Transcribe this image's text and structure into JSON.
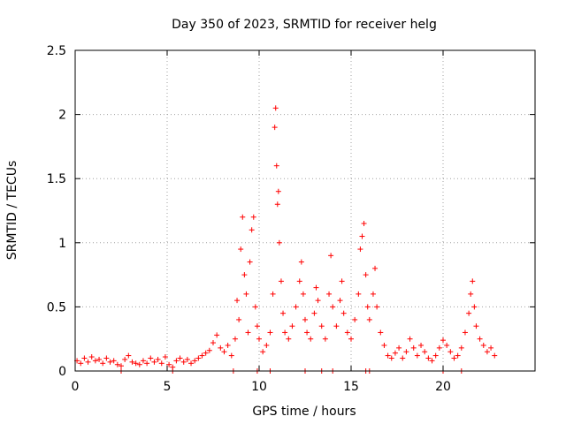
{
  "chart_data": {
    "type": "scatter",
    "title": "Day 350 of 2023, SRMTID for receiver helg",
    "xlabel": "GPS time / hours",
    "ylabel": "SRMTID / TECUs",
    "xlim": [
      0,
      25
    ],
    "ylim": [
      0,
      2.5
    ],
    "xticks": [
      0,
      5,
      10,
      15,
      20
    ],
    "xtick_labels": [
      "0",
      "5",
      "10",
      "15",
      "20"
    ],
    "yticks": [
      0,
      0.5,
      1,
      1.5,
      2,
      2.5
    ],
    "ytick_labels": [
      "0",
      "0.5",
      "1",
      "1.5",
      "2",
      "2.5"
    ],
    "grid": true,
    "marker": "+",
    "color": "#ff0000",
    "series": [
      {
        "name": "SRMTID",
        "points": [
          [
            0.1,
            0.08
          ],
          [
            0.3,
            0.06
          ],
          [
            0.5,
            0.1
          ],
          [
            0.7,
            0.07
          ],
          [
            0.9,
            0.11
          ],
          [
            1.1,
            0.08
          ],
          [
            1.3,
            0.09
          ],
          [
            1.5,
            0.06
          ],
          [
            1.7,
            0.1
          ],
          [
            1.9,
            0.07
          ],
          [
            2.1,
            0.08
          ],
          [
            2.3,
            0.05
          ],
          [
            2.5,
            0.04
          ],
          [
            2.7,
            0.09
          ],
          [
            2.9,
            0.12
          ],
          [
            3.1,
            0.07
          ],
          [
            3.3,
            0.06
          ],
          [
            3.5,
            0.05
          ],
          [
            3.7,
            0.08
          ],
          [
            3.9,
            0.06
          ],
          [
            4.1,
            0.1
          ],
          [
            4.3,
            0.07
          ],
          [
            4.5,
            0.09
          ],
          [
            4.7,
            0.06
          ],
          [
            4.9,
            0.11
          ],
          [
            5.1,
            0.05
          ],
          [
            5.3,
            0.03
          ],
          [
            5.5,
            0.08
          ],
          [
            5.7,
            0.1
          ],
          [
            5.9,
            0.07
          ],
          [
            6.1,
            0.09
          ],
          [
            6.3,
            0.06
          ],
          [
            6.5,
            0.08
          ],
          [
            6.7,
            0.1
          ],
          [
            6.9,
            0.12
          ],
          [
            7.1,
            0.14
          ],
          [
            7.3,
            0.16
          ],
          [
            7.5,
            0.22
          ],
          [
            7.7,
            0.28
          ],
          [
            7.9,
            0.18
          ],
          [
            8.1,
            0.15
          ],
          [
            8.3,
            0.2
          ],
          [
            8.5,
            0.12
          ],
          [
            8.7,
            0.25
          ],
          [
            8.8,
            0.55
          ],
          [
            8.9,
            0.4
          ],
          [
            9.0,
            0.95
          ],
          [
            9.1,
            1.2
          ],
          [
            9.2,
            0.75
          ],
          [
            9.3,
            0.6
          ],
          [
            9.4,
            0.3
          ],
          [
            9.5,
            0.85
          ],
          [
            9.6,
            1.1
          ],
          [
            9.7,
            1.2
          ],
          [
            9.8,
            0.5
          ],
          [
            9.9,
            0.35
          ],
          [
            10.0,
            0.25
          ],
          [
            10.2,
            0.15
          ],
          [
            10.4,
            0.2
          ],
          [
            10.6,
            0.3
          ],
          [
            10.75,
            0.6
          ],
          [
            10.85,
            1.9
          ],
          [
            10.9,
            2.05
          ],
          [
            10.95,
            1.6
          ],
          [
            11.0,
            1.3
          ],
          [
            11.05,
            1.4
          ],
          [
            11.1,
            1.0
          ],
          [
            11.2,
            0.7
          ],
          [
            11.3,
            0.45
          ],
          [
            11.4,
            0.3
          ],
          [
            11.6,
            0.25
          ],
          [
            11.8,
            0.35
          ],
          [
            12.0,
            0.5
          ],
          [
            12.2,
            0.7
          ],
          [
            12.3,
            0.85
          ],
          [
            12.4,
            0.6
          ],
          [
            12.5,
            0.4
          ],
          [
            12.6,
            0.3
          ],
          [
            12.8,
            0.25
          ],
          [
            13.0,
            0.45
          ],
          [
            13.1,
            0.65
          ],
          [
            13.2,
            0.55
          ],
          [
            13.4,
            0.35
          ],
          [
            13.6,
            0.25
          ],
          [
            13.8,
            0.6
          ],
          [
            13.9,
            0.9
          ],
          [
            14.0,
            0.5
          ],
          [
            14.2,
            0.35
          ],
          [
            14.4,
            0.55
          ],
          [
            14.5,
            0.7
          ],
          [
            14.6,
            0.45
          ],
          [
            14.8,
            0.3
          ],
          [
            15.0,
            0.25
          ],
          [
            15.2,
            0.4
          ],
          [
            15.4,
            0.6
          ],
          [
            15.5,
            0.95
          ],
          [
            15.6,
            1.05
          ],
          [
            15.7,
            1.15
          ],
          [
            15.8,
            0.75
          ],
          [
            15.9,
            0.5
          ],
          [
            16.0,
            0.4
          ],
          [
            16.2,
            0.6
          ],
          [
            16.3,
            0.8
          ],
          [
            16.4,
            0.5
          ],
          [
            16.6,
            0.3
          ],
          [
            16.8,
            0.2
          ],
          [
            17.0,
            0.12
          ],
          [
            17.2,
            0.1
          ],
          [
            17.4,
            0.14
          ],
          [
            17.6,
            0.18
          ],
          [
            17.8,
            0.1
          ],
          [
            18.0,
            0.15
          ],
          [
            18.2,
            0.25
          ],
          [
            18.4,
            0.18
          ],
          [
            18.6,
            0.12
          ],
          [
            18.8,
            0.2
          ],
          [
            19.0,
            0.15
          ],
          [
            19.2,
            0.1
          ],
          [
            19.4,
            0.08
          ],
          [
            19.6,
            0.12
          ],
          [
            19.8,
            0.18
          ],
          [
            20.0,
            0.24
          ],
          [
            20.2,
            0.2
          ],
          [
            20.4,
            0.15
          ],
          [
            20.6,
            0.1
          ],
          [
            20.8,
            0.12
          ],
          [
            21.0,
            0.18
          ],
          [
            21.2,
            0.3
          ],
          [
            21.4,
            0.45
          ],
          [
            21.5,
            0.6
          ],
          [
            21.6,
            0.7
          ],
          [
            21.7,
            0.5
          ],
          [
            21.8,
            0.35
          ],
          [
            22.0,
            0.25
          ],
          [
            22.2,
            0.2
          ],
          [
            22.4,
            0.15
          ],
          [
            22.6,
            0.18
          ],
          [
            22.8,
            0.12
          ],
          [
            2.5,
            0.0
          ],
          [
            5.3,
            0.0
          ],
          [
            8.6,
            0.0
          ],
          [
            9.9,
            0.0
          ],
          [
            10.6,
            0.0
          ],
          [
            12.5,
            0.0
          ],
          [
            13.4,
            0.0
          ],
          [
            14.0,
            0.0
          ],
          [
            15.8,
            0.0
          ],
          [
            16.0,
            0.0
          ],
          [
            20.0,
            0.0
          ],
          [
            21.0,
            0.0
          ]
        ]
      }
    ]
  }
}
